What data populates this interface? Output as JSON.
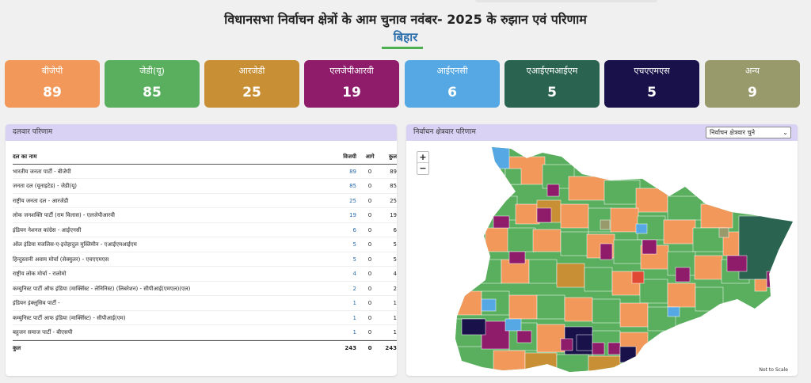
{
  "header": {
    "title": "विधानसभा निर्वाचन क्षेत्रों के आम चुनाव नवंबर- 2025 के रुझान एवं परिणाम",
    "state": "बिहार"
  },
  "summary_cards": [
    {
      "label": "बीजेपी",
      "count": "89",
      "color": "#f2985a"
    },
    {
      "label": "जेडी(यू)",
      "count": "85",
      "color": "#5aaf5f"
    },
    {
      "label": "आरजेडी",
      "count": "25",
      "color": "#c98f35"
    },
    {
      "label": "एलजेपीआरवी",
      "count": "19",
      "color": "#8e1c6a"
    },
    {
      "label": "आईएनसी",
      "count": "6",
      "color": "#55a8e3"
    },
    {
      "label": "एआईएमआईएम",
      "count": "5",
      "color": "#2a6450"
    },
    {
      "label": "एचएएमएस",
      "count": "5",
      "color": "#18114a"
    },
    {
      "label": "अन्य",
      "count": "9",
      "color": "#999a6c"
    }
  ],
  "party_panel": {
    "title": "दलवार परिणाम",
    "columns": {
      "name": "दल का नाम",
      "won": "विजयी",
      "leading": "आगे",
      "total": "कुल"
    },
    "rows": [
      {
        "name": "भारतीय जनता पार्टी - बीजेपी",
        "won": "89",
        "leading": "0",
        "total": "89"
      },
      {
        "name": "जनता दल (यूनाइटेड) - जेडी(यू)",
        "won": "85",
        "leading": "0",
        "total": "85"
      },
      {
        "name": "राष्ट्रीय जनता दल - आरजेडी",
        "won": "25",
        "leading": "0",
        "total": "25"
      },
      {
        "name": "लोक जनशक्ति पार्टी (राम विलास) - एलजेपीआरवी",
        "won": "19",
        "leading": "0",
        "total": "19"
      },
      {
        "name": "इंडियन नेशनल कांग्रेस - आईएनसी",
        "won": "6",
        "leading": "0",
        "total": "6"
      },
      {
        "name": "ऑल इंडिया मजलिस-ए-इत्तेहादुल मुस्लिमीन - एआईएमआईएम",
        "won": "5",
        "leading": "0",
        "total": "5"
      },
      {
        "name": "हिन्दुस्तानी अवाम मोर्चा (सेक्युलर) - एचएएमएस",
        "won": "5",
        "leading": "0",
        "total": "5"
      },
      {
        "name": "राष्ट्रीय लोक मोर्चा - रालोमो",
        "won": "4",
        "leading": "0",
        "total": "4"
      },
      {
        "name": "कम्युनिस्ट पार्टी ऑफ इंडिया (मार्क्सिस्ट - लेनिनिस्ट) (लिबरेशन) - सीपीआई(एमएल)(एल)",
        "won": "2",
        "leading": "0",
        "total": "2"
      },
      {
        "name": "इंडियन इंक्लूसिव पार्टी -",
        "won": "1",
        "leading": "0",
        "total": "1"
      },
      {
        "name": "कम्युनिस्ट पार्टी आफ इंडिया (मार्क्सिस्ट) - सीपीआई(एम)",
        "won": "1",
        "leading": "0",
        "total": "1"
      },
      {
        "name": "बहुजन समाज पार्टी - बीएसपी",
        "won": "1",
        "leading": "0",
        "total": "1"
      }
    ],
    "total": {
      "label": "कुल",
      "won": "243",
      "leading": "0",
      "total": "243"
    }
  },
  "map_panel": {
    "title": "निर्वाचन क्षेत्रवार परिणाम",
    "dropdown_value": "निर्वाचन क्षेत्रवार चुने",
    "zoom_in": "+",
    "zoom_out": "−",
    "scale_note": "Not to Scale"
  }
}
